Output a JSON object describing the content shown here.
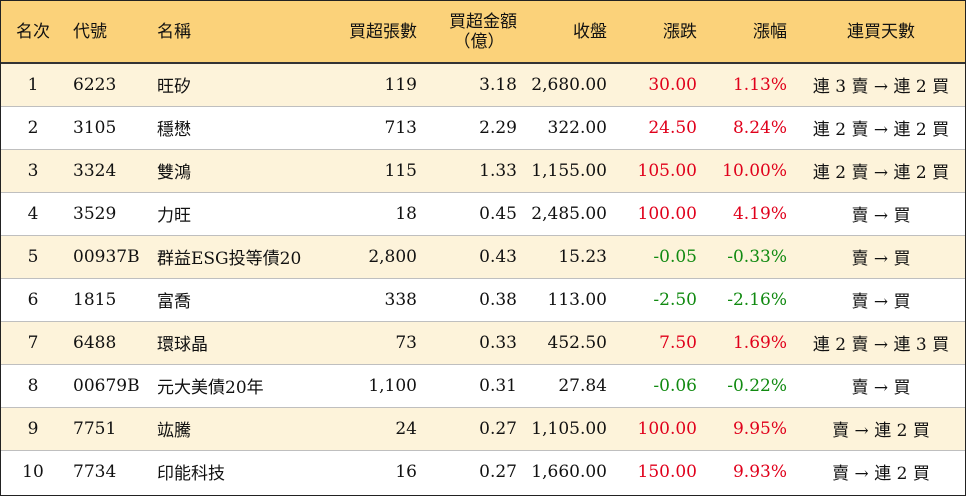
{
  "headers": {
    "rank": "名次",
    "code": "代號",
    "name": "名稱",
    "net_buy_lots": "買超張數",
    "net_buy_amount_line1": "買超金額",
    "net_buy_amount_line2": "（億）",
    "close": "收盤",
    "change": "漲跌",
    "pct": "漲幅",
    "streak": "連買天數"
  },
  "colors": {
    "header_bg": "#fbd27a",
    "odd_row_bg": "#fdf3da",
    "up": "#e0001b",
    "down": "#118a11"
  },
  "rows": [
    {
      "rank": "1",
      "code": "6223",
      "name": "旺矽",
      "lots": "119",
      "amount": "3.18",
      "close": "2,680.00",
      "change": "30.00",
      "pct": "1.13%",
      "dir": "up",
      "streak": "連 3 賣 → 連 2 買"
    },
    {
      "rank": "2",
      "code": "3105",
      "name": "穩懋",
      "lots": "713",
      "amount": "2.29",
      "close": "322.00",
      "change": "24.50",
      "pct": "8.24%",
      "dir": "up",
      "streak": "連 2 賣 → 連 2 買"
    },
    {
      "rank": "3",
      "code": "3324",
      "name": "雙鴻",
      "lots": "115",
      "amount": "1.33",
      "close": "1,155.00",
      "change": "105.00",
      "pct": "10.00%",
      "dir": "up",
      "streak": "連 2 賣 → 連 2 買"
    },
    {
      "rank": "4",
      "code": "3529",
      "name": "力旺",
      "lots": "18",
      "amount": "0.45",
      "close": "2,485.00",
      "change": "100.00",
      "pct": "4.19%",
      "dir": "up",
      "streak": "賣 → 買"
    },
    {
      "rank": "5",
      "code": "00937B",
      "name": "群益ESG投等債20",
      "lots": "2,800",
      "amount": "0.43",
      "close": "15.23",
      "change": "-0.05",
      "pct": "-0.33%",
      "dir": "down",
      "streak": "賣 → 買"
    },
    {
      "rank": "6",
      "code": "1815",
      "name": "富喬",
      "lots": "338",
      "amount": "0.38",
      "close": "113.00",
      "change": "-2.50",
      "pct": "-2.16%",
      "dir": "down",
      "streak": "賣 → 買"
    },
    {
      "rank": "7",
      "code": "6488",
      "name": "環球晶",
      "lots": "73",
      "amount": "0.33",
      "close": "452.50",
      "change": "7.50",
      "pct": "1.69%",
      "dir": "up",
      "streak": "連 2 賣 → 連 3 買"
    },
    {
      "rank": "8",
      "code": "00679B",
      "name": "元大美債20年",
      "lots": "1,100",
      "amount": "0.31",
      "close": "27.84",
      "change": "-0.06",
      "pct": "-0.22%",
      "dir": "down",
      "streak": "賣 → 買"
    },
    {
      "rank": "9",
      "code": "7751",
      "name": "竑騰",
      "lots": "24",
      "amount": "0.27",
      "close": "1,105.00",
      "change": "100.00",
      "pct": "9.95%",
      "dir": "up",
      "streak": "賣 → 連 2 買"
    },
    {
      "rank": "10",
      "code": "7734",
      "name": "印能科技",
      "lots": "16",
      "amount": "0.27",
      "close": "1,660.00",
      "change": "150.00",
      "pct": "9.93%",
      "dir": "up",
      "streak": "賣 → 連 2 買"
    }
  ]
}
